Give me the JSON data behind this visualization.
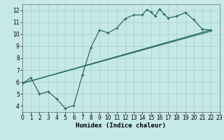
{
  "background_color": "#c5e8e8",
  "grid_color": "#aacece",
  "line_color": "#2a6b5e",
  "xlabel": "Humidex (Indice chaleur)",
  "xlim": [
    0,
    23
  ],
  "ylim": [
    3.5,
    12.5
  ],
  "xticks": [
    0,
    1,
    2,
    3,
    4,
    5,
    6,
    7,
    8,
    9,
    10,
    11,
    12,
    13,
    14,
    15,
    16,
    17,
    18,
    19,
    20,
    21,
    22,
    23
  ],
  "yticks": [
    4,
    5,
    6,
    7,
    8,
    9,
    10,
    11,
    12
  ],
  "curve_x": [
    0,
    1,
    2,
    3,
    4,
    5,
    6,
    7,
    8,
    9,
    10,
    11,
    12,
    13,
    14,
    14.5,
    15,
    15.5,
    16,
    16.5,
    17,
    18,
    19,
    20,
    21,
    22
  ],
  "curve_y": [
    5.9,
    6.35,
    5.0,
    5.2,
    4.6,
    3.8,
    4.05,
    6.6,
    8.9,
    10.35,
    10.1,
    10.5,
    11.3,
    11.6,
    11.6,
    12.05,
    11.85,
    11.5,
    12.1,
    11.7,
    11.35,
    11.5,
    11.8,
    11.2,
    10.4,
    10.35
  ],
  "diag1": {
    "x": [
      0,
      22
    ],
    "y": [
      5.9,
      10.35
    ]
  },
  "diag2": {
    "x": [
      0,
      22
    ],
    "y": [
      5.9,
      10.25
    ]
  },
  "figsize": [
    3.2,
    2.0
  ],
  "dpi": 100
}
